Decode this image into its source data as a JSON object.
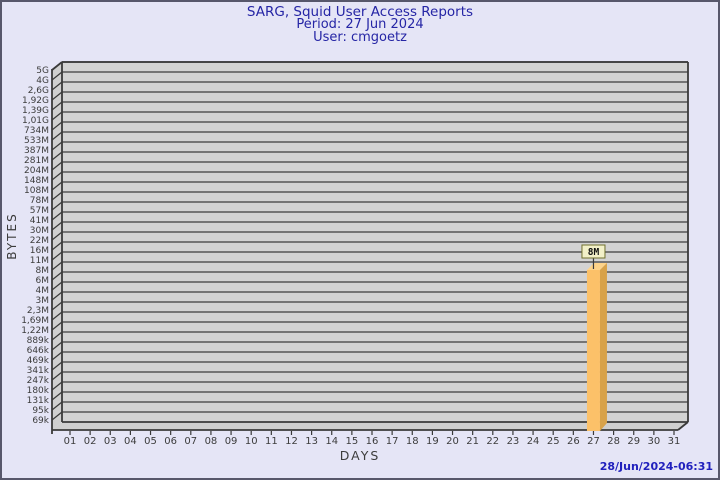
{
  "window": {
    "background": "#e5e5f6",
    "frame_border": "#57576b"
  },
  "header": {
    "title": "SARG, Squid User Access Reports",
    "period": "Period: 27 Jun 2024",
    "user": "User: cmgoetz",
    "color": "#2525a5"
  },
  "footer": {
    "generated": "28/Jun/2024-06:31",
    "color": "#2121bd"
  },
  "chart_data": {
    "type": "bar",
    "style": "3d-column",
    "title": "SARG, Squid User Access Reports",
    "subtitle": "Period: 27 Jun 2024",
    "user_line": "User: cmgoetz",
    "xlabel": "DAYS",
    "ylabel": "BYTES",
    "y_scale": "log",
    "grid": "horizontal",
    "legend": null,
    "y_tick_labels_top_to_bottom": [
      "5G",
      "4G",
      "2,6G",
      "1,92G",
      "1,39G",
      "1,01G",
      "734M",
      "533M",
      "387M",
      "281M",
      "204M",
      "148M",
      "108M",
      "78M",
      "57M",
      "41M",
      "30M",
      "22M",
      "16M",
      "11M",
      "8M",
      "6M",
      "4M",
      "3M",
      "2,3M",
      "1,69M",
      "1,22M",
      "889k",
      "646k",
      "469k",
      "341k",
      "247k",
      "180k",
      "131k",
      "95k",
      "69k"
    ],
    "categories": [
      "01",
      "02",
      "03",
      "04",
      "05",
      "06",
      "07",
      "08",
      "09",
      "10",
      "11",
      "12",
      "13",
      "14",
      "15",
      "16",
      "17",
      "18",
      "19",
      "20",
      "21",
      "22",
      "23",
      "24",
      "25",
      "26",
      "27",
      "28",
      "29",
      "30",
      "31"
    ],
    "bars": [
      {
        "category": "27",
        "value_label": "8M",
        "y_tick": "8M"
      }
    ],
    "colors": {
      "plot_bg": "#d3d3d3",
      "wall": "#cfcfcf",
      "gridline": "#565656",
      "edge": "#3a3a3a",
      "tick_text": "#3c3c3c",
      "bar_front": "#fcc169",
      "bar_side": "#d8a249",
      "bar_top": "#fdd38a",
      "callout_bg": "#f2f0c8",
      "callout_border": "#70702e",
      "callout_text": "#111111"
    }
  }
}
